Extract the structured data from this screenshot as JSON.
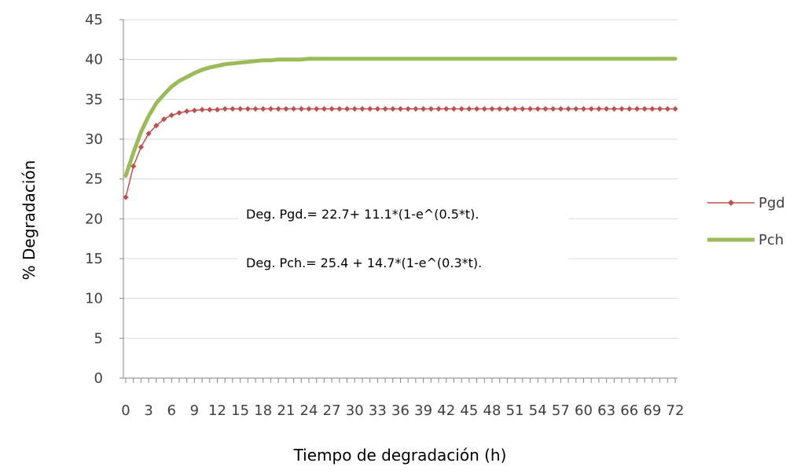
{
  "chart_data": {
    "type": "line",
    "title": "",
    "xlabel": "Tiempo de degradación (h)",
    "ylabel": "% Degradación",
    "ylim": [
      0,
      45
    ],
    "yticks": [
      0,
      5,
      10,
      15,
      20,
      25,
      30,
      35,
      40,
      45
    ],
    "xticks": [
      "0",
      "3",
      "6",
      "9",
      "12",
      "15",
      "18",
      "21",
      "24",
      "27",
      "30",
      "33",
      "36",
      "39",
      "42",
      "45",
      "48",
      "51",
      "54",
      "57",
      "60",
      "63",
      "66",
      "69",
      "72"
    ],
    "grid": true,
    "legend": "right",
    "annotations": [
      "Deg. Pgd.= 22.7+ 11.1*(1-e^(0.5*t).",
      "Deg. Pch.= 25.4 + 14.7*(1-e^(0.3*t)."
    ],
    "series": [
      {
        "name": "Pgd",
        "color": "#c0504d",
        "marker": "diamond",
        "x": [
          0,
          1,
          2,
          3,
          4,
          5,
          6,
          7,
          8,
          9,
          10,
          11,
          12,
          13,
          14,
          15,
          16,
          17,
          18,
          19,
          20,
          21,
          22,
          23,
          24,
          25,
          26,
          27,
          28,
          29,
          30,
          31,
          32,
          33,
          34,
          35,
          36,
          37,
          38,
          39,
          40,
          41,
          42,
          43,
          44,
          45,
          46,
          47,
          48,
          49,
          50,
          51,
          52,
          53,
          54,
          55,
          56,
          57,
          58,
          59,
          60,
          61,
          62,
          63,
          64,
          65,
          66,
          67,
          68,
          69,
          70,
          71,
          72
        ],
        "values": [
          22.7,
          26.6,
          29.0,
          30.7,
          31.7,
          32.5,
          33.0,
          33.3,
          33.5,
          33.6,
          33.7,
          33.7,
          33.7,
          33.8,
          33.8,
          33.8,
          33.8,
          33.8,
          33.8,
          33.8,
          33.8,
          33.8,
          33.8,
          33.8,
          33.8,
          33.8,
          33.8,
          33.8,
          33.8,
          33.8,
          33.8,
          33.8,
          33.8,
          33.8,
          33.8,
          33.8,
          33.8,
          33.8,
          33.8,
          33.8,
          33.8,
          33.8,
          33.8,
          33.8,
          33.8,
          33.8,
          33.8,
          33.8,
          33.8,
          33.8,
          33.8,
          33.8,
          33.8,
          33.8,
          33.8,
          33.8,
          33.8,
          33.8,
          33.8,
          33.8,
          33.8,
          33.8,
          33.8,
          33.8,
          33.8,
          33.8,
          33.8,
          33.8,
          33.8,
          33.8,
          33.8,
          33.8,
          33.8
        ]
      },
      {
        "name": "Pch",
        "color": "#9bbb59",
        "marker": "none",
        "x": [
          0,
          1,
          2,
          3,
          4,
          5,
          6,
          7,
          8,
          9,
          10,
          11,
          12,
          13,
          14,
          15,
          16,
          17,
          18,
          19,
          20,
          21,
          22,
          23,
          24,
          25,
          26,
          27,
          28,
          29,
          30,
          31,
          32,
          33,
          34,
          35,
          36,
          37,
          38,
          39,
          40,
          41,
          42,
          43,
          44,
          45,
          46,
          47,
          48,
          49,
          50,
          51,
          52,
          53,
          54,
          55,
          56,
          57,
          58,
          59,
          60,
          61,
          62,
          63,
          64,
          65,
          66,
          67,
          68,
          69,
          70,
          71,
          72
        ],
        "values": [
          25.4,
          28.3,
          30.9,
          32.9,
          34.5,
          35.6,
          36.6,
          37.3,
          37.8,
          38.3,
          38.7,
          39.0,
          39.2,
          39.4,
          39.5,
          39.6,
          39.7,
          39.8,
          39.9,
          39.9,
          40.0,
          40.0,
          40.0,
          40.0,
          40.1,
          40.1,
          40.1,
          40.1,
          40.1,
          40.1,
          40.1,
          40.1,
          40.1,
          40.1,
          40.1,
          40.1,
          40.1,
          40.1,
          40.1,
          40.1,
          40.1,
          40.1,
          40.1,
          40.1,
          40.1,
          40.1,
          40.1,
          40.1,
          40.1,
          40.1,
          40.1,
          40.1,
          40.1,
          40.1,
          40.1,
          40.1,
          40.1,
          40.1,
          40.1,
          40.1,
          40.1,
          40.1,
          40.1,
          40.1,
          40.1,
          40.1,
          40.1,
          40.1,
          40.1,
          40.1,
          40.1,
          40.1,
          40.1
        ]
      }
    ]
  }
}
